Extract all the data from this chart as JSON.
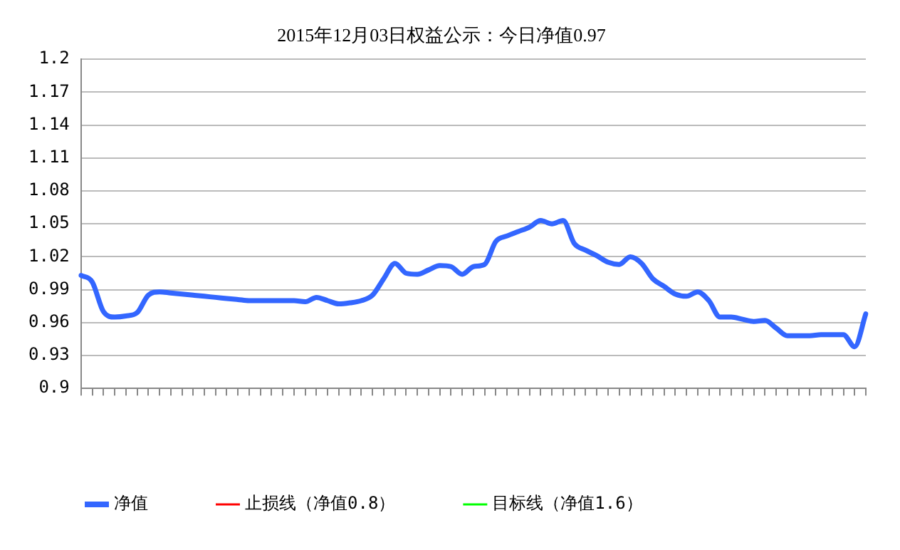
{
  "chart_data": {
    "type": "line",
    "title": "2015年12月03日权益公示：今日净值0.97",
    "categories": [
      null,
      null,
      null,
      null,
      null,
      null,
      null,
      null,
      null,
      null,
      null,
      null,
      null,
      null,
      null,
      null,
      null,
      null,
      null,
      null,
      null,
      null,
      null,
      null,
      null,
      null,
      null,
      null,
      null,
      null,
      null,
      null,
      null,
      null,
      null,
      null,
      null,
      null,
      null,
      null,
      null,
      null,
      null,
      null,
      null,
      null,
      null,
      null,
      null,
      null,
      null,
      null,
      null,
      null,
      null,
      null,
      null,
      null,
      null,
      null,
      null,
      null,
      null,
      null,
      null,
      null,
      null,
      null,
      null,
      null,
      null
    ],
    "series": [
      {
        "name": "净值",
        "color": "#3366ff",
        "values": [
          1.003,
          0.997,
          0.97,
          0.965,
          0.966,
          0.969,
          0.985,
          0.988,
          0.987,
          0.986,
          0.985,
          0.984,
          0.983,
          0.982,
          0.981,
          0.98,
          0.98,
          0.98,
          0.98,
          0.98,
          0.979,
          0.983,
          0.98,
          0.977,
          0.978,
          0.98,
          0.985,
          1.0,
          1.014,
          1.005,
          1.004,
          1.008,
          1.012,
          1.011,
          1.004,
          1.011,
          1.013,
          1.034,
          1.039,
          1.043,
          1.047,
          1.053,
          1.05,
          1.053,
          1.032,
          1.026,
          1.021,
          1.015,
          1.013,
          1.02,
          1.014,
          1.0,
          0.993,
          0.986,
          0.984,
          0.988,
          0.98,
          0.965,
          0.965,
          0.963,
          0.961,
          0.962,
          0.955,
          0.948,
          0.948,
          0.948,
          0.949,
          0.949,
          0.949,
          0.938,
          0.968
        ]
      },
      {
        "name": "止损线（净值0.8）",
        "color": "#ff0000",
        "values": [
          null,
          null,
          null,
          null,
          null,
          null,
          null,
          null,
          null,
          null,
          null,
          null,
          null,
          null,
          null,
          null,
          null,
          null,
          null,
          null,
          null,
          null,
          null,
          null,
          null,
          null,
          null,
          null,
          null,
          null,
          null,
          null,
          null,
          null,
          null,
          null,
          null,
          null,
          null,
          null,
          null,
          null,
          null,
          null,
          null,
          null,
          null,
          null,
          null,
          null,
          null,
          null,
          null,
          null,
          null,
          null,
          null,
          null,
          null,
          null,
          null,
          null,
          null,
          null,
          null,
          null,
          null,
          null,
          null,
          null,
          null
        ]
      },
      {
        "name": "目标线（净值1.6）",
        "color": "#00ff00",
        "values": [
          null,
          null,
          null,
          null,
          null,
          null,
          null,
          null,
          null,
          null,
          null,
          null,
          null,
          null,
          null,
          null,
          null,
          null,
          null,
          null,
          null,
          null,
          null,
          null,
          null,
          null,
          null,
          null,
          null,
          null,
          null,
          null,
          null,
          null,
          null,
          null,
          null,
          null,
          null,
          null,
          null,
          null,
          null,
          null,
          null,
          null,
          null,
          null,
          null,
          null,
          null,
          null,
          null,
          null,
          null,
          null,
          null,
          null,
          null,
          null,
          null,
          null,
          null,
          null,
          null,
          null,
          null,
          null,
          null,
          null,
          null
        ]
      }
    ],
    "ylim": [
      0.9,
      1.2
    ],
    "yticks": [
      0.9,
      0.93,
      0.96,
      0.99,
      1.02,
      1.05,
      1.08,
      1.11,
      1.14,
      1.17,
      1.2
    ],
    "grid": "y",
    "legend": "bottom",
    "marker": "none",
    "line_style": "solid"
  }
}
